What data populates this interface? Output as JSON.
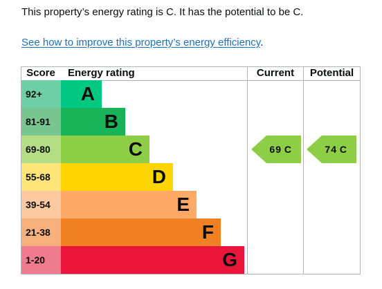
{
  "summary": {
    "text": "This property’s energy rating is C. It has the potential to be C."
  },
  "improve": {
    "link_text": "See how to improve this property’s energy efficiency",
    "suffix": "."
  },
  "chart": {
    "headers": {
      "score": "Score",
      "energy_rating": "Energy rating",
      "current": "Current",
      "potential": "Potential"
    },
    "bands": [
      {
        "score": "92+",
        "letter": "A",
        "bar_color": "#00c781",
        "score_color": "#6ecfa6",
        "length_fraction": 0.12
      },
      {
        "score": "81-91",
        "letter": "B",
        "bar_color": "#19b459",
        "score_color": "#78c58f",
        "length_fraction": 0.19
      },
      {
        "score": "69-80",
        "letter": "C",
        "bar_color": "#8dce46",
        "score_color": "#b4dd86",
        "length_fraction": 0.26
      },
      {
        "score": "55-68",
        "letter": "D",
        "bar_color": "#ffd500",
        "score_color": "#fde57a",
        "length_fraction": 0.33
      },
      {
        "score": "39-54",
        "letter": "E",
        "bar_color": "#fcaa65",
        "score_color": "#fcc9a0",
        "length_fraction": 0.4
      },
      {
        "score": "21-38",
        "letter": "F",
        "bar_color": "#ef8023",
        "score_color": "#f5b07b",
        "length_fraction": 0.47
      },
      {
        "score": "1-20",
        "letter": "G",
        "bar_color": "#e9153b",
        "score_color": "#f07a8e",
        "length_fraction": 0.54
      }
    ],
    "current": {
      "value": "69",
      "letter": "C",
      "band_index": 2,
      "color": "#8dce46"
    },
    "potential": {
      "value": "74",
      "letter": "C",
      "band_index": 2,
      "color": "#8dce46"
    }
  }
}
